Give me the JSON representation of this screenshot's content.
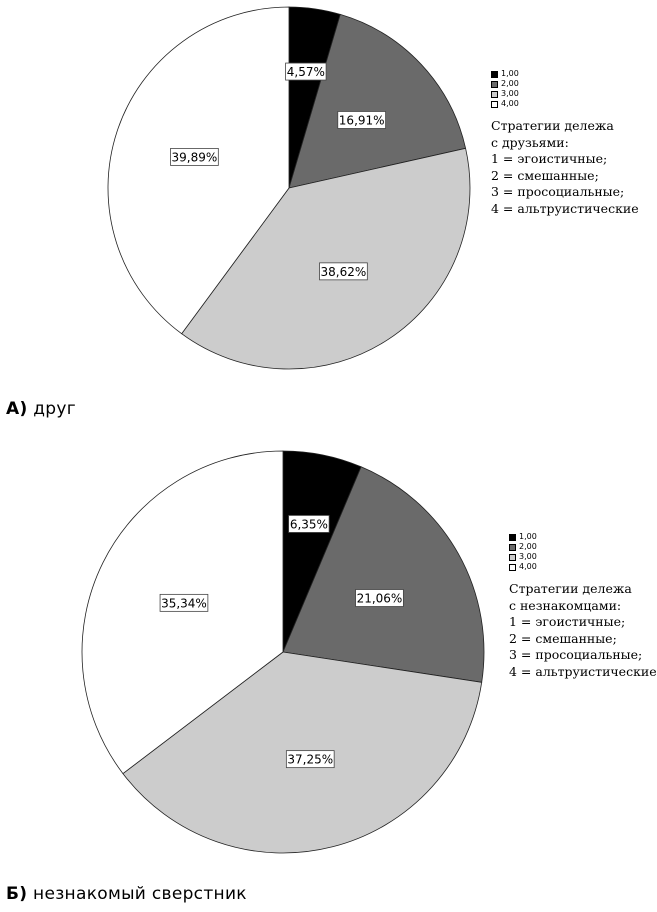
{
  "chart_data": [
    {
      "type": "pie",
      "legend_entries": [
        "1,00",
        "2,00",
        "3,00",
        "4,00"
      ],
      "slice_labels": [
        "4,57%",
        "16,91%",
        "38,62%",
        "39,89%"
      ],
      "values": [
        4.57,
        16.91,
        38.62,
        39.89
      ],
      "colors": [
        "#000000",
        "#6a6a6a",
        "#cccccc",
        "#ffffff"
      ],
      "legend_placement": "right",
      "note_lines": [
        "Стратегии дележа",
        "с друзьями:",
        "1 = эгоистичные;",
        "2 = смешанные;",
        "3 = просоциальные;",
        "4 = альтруистические"
      ],
      "caption_letter": "А)",
      "caption_text": "друг"
    },
    {
      "type": "pie",
      "legend_entries": [
        "1,00",
        "2,00",
        "3,00",
        "4,00"
      ],
      "slice_labels": [
        "6,35%",
        "21,06%",
        "37,25%",
        "35,34%"
      ],
      "values": [
        6.35,
        21.06,
        37.25,
        35.34
      ],
      "colors": [
        "#000000",
        "#6a6a6a",
        "#cccccc",
        "#ffffff"
      ],
      "legend_placement": "right",
      "note_lines": [
        "Стратегии дележа",
        "с незнакомцами:",
        "1 = эгоистичные;",
        "2 = смешанные;",
        "3 = просоциальные;",
        "4 = альтруистические"
      ],
      "caption_letter": "Б)",
      "caption_text": "незнакомый сверстник"
    }
  ]
}
